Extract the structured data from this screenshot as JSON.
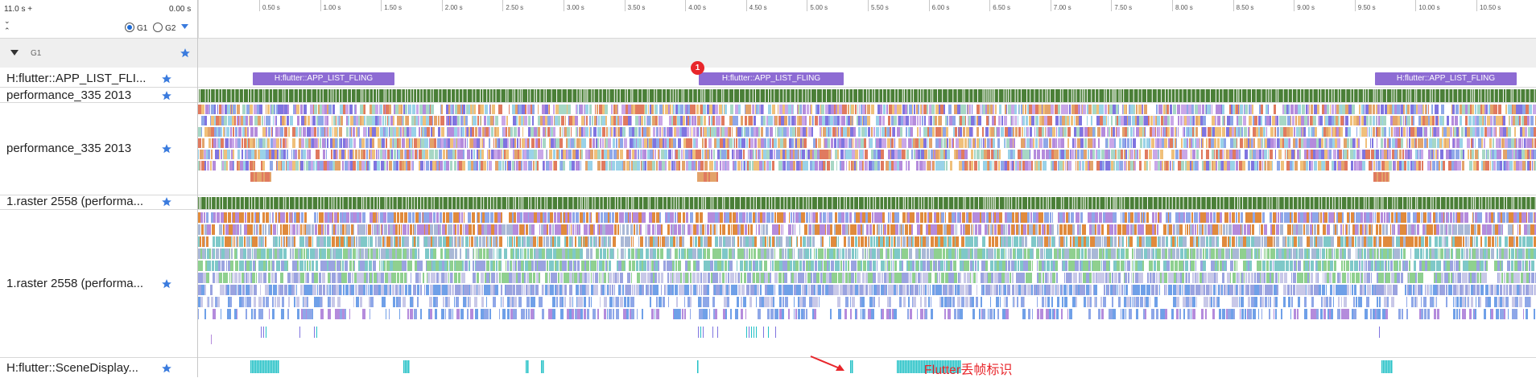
{
  "header": {
    "range_label": "11.0 s +",
    "offset_label": "0.00 s",
    "radio_g1": "G1",
    "radio_g2": "G2",
    "ticks": [
      "0.50 s",
      "1.00 s",
      "1.50 s",
      "2.00 s",
      "2.50 s",
      "3.00 s",
      "3.50 s",
      "4.00 s",
      "4.50 s",
      "5.00 s",
      "5.50 s",
      "6.00 s",
      "6.50 s",
      "7.00 s",
      "7.50 s",
      "8.00 s",
      "8.50 s",
      "9.00 s",
      "9.50 s",
      "10.00 s",
      "10.50 s"
    ]
  },
  "group": {
    "label": "G1"
  },
  "rows": [
    {
      "label": "H:flutter::APP_LIST_FLI..."
    },
    {
      "label": "performance_335 2013"
    },
    {
      "label": "performance_335 2013"
    },
    {
      "label": "1.raster 2558 (performa..."
    },
    {
      "label": "1.raster 2558 (performa..."
    },
    {
      "label": "H:flutter::SceneDisplay..."
    }
  ],
  "slices": [
    {
      "label": "H:flutter::APP_LIST_FLING"
    },
    {
      "label": "H:flutter::APP_LIST_FLING"
    },
    {
      "label": "H:flutter::APP_LIST_FLING"
    }
  ],
  "flag": {
    "label": "1"
  },
  "annotation": {
    "text": "Flutter丢帧标识"
  },
  "colors": {
    "slice": "#8d6bd3",
    "state_green": "#4a7f37",
    "frame_cyan": "#22c0c6",
    "annotation_red": "#e8262b",
    "star_blue": "#3a7bde"
  },
  "icons": [
    "collapse-icon",
    "expand-icon",
    "triangle-icon",
    "star-icon",
    "filter-triangle-icon",
    "arrow-icon"
  ]
}
